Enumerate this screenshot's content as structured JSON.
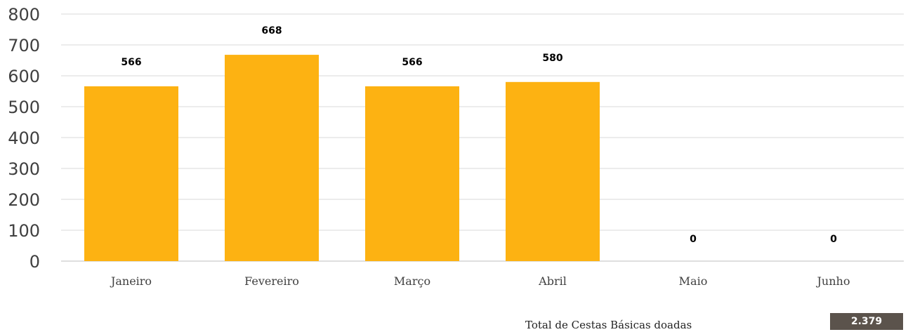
{
  "chart_data": {
    "type": "bar",
    "categories": [
      "Janeiro",
      "Fevereiro",
      "Março",
      "Abril",
      "Maio",
      "Junho"
    ],
    "values": [
      566,
      668,
      566,
      580,
      0,
      0
    ],
    "data_labels": [
      "566",
      "668",
      "566",
      "580",
      "0",
      "0"
    ],
    "ylim": [
      0,
      800
    ],
    "yticks": [
      "0",
      "100",
      "200",
      "300",
      "400",
      "500",
      "600",
      "700",
      "800"
    ],
    "grid": true,
    "colors": {
      "bar": "#FDB212",
      "grid": "#D9D9D9",
      "axis": "#BFBFBF"
    }
  },
  "summary": {
    "label": "Total de Cestas Básicas doadas",
    "value": "2.379",
    "badge_color": "#5B534C"
  }
}
